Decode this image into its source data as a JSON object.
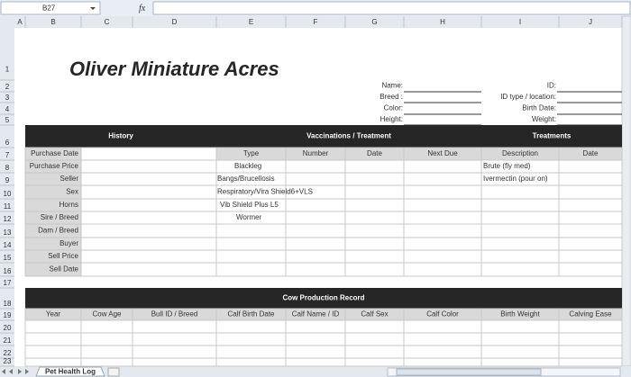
{
  "formula_bar": {
    "name_box": "B27",
    "fx": "fx"
  },
  "column_headers": [
    "A",
    "B",
    "C",
    "D",
    "E",
    "F",
    "G",
    "H",
    "I",
    "J"
  ],
  "row_headers": [
    "1",
    "2",
    "3",
    "4",
    "5",
    "6",
    "7",
    "8",
    "9",
    "10",
    "11",
    "12",
    "13",
    "14",
    "15",
    "16",
    "17",
    "18",
    "19",
    "20",
    "21",
    "22",
    "23"
  ],
  "title": "Oliver Miniature Acres",
  "fields_left": [
    "Name:",
    "Breed :",
    "Color:",
    "Height:"
  ],
  "fields_right": [
    "ID:",
    "ID type / location:",
    "Birth Date:",
    "Weight:"
  ],
  "history": {
    "title": "History",
    "labels": [
      "Purchase Date",
      "Purchase Price",
      "Seller",
      "Sex",
      "Horns",
      "Sire / Breed",
      "Dam / Breed",
      "Buyer",
      "Sell Price",
      "Sell Date"
    ]
  },
  "vaccinations": {
    "title": "Vaccinations / Treatment",
    "columns": [
      "Type",
      "Number",
      "Date",
      "Next Due"
    ],
    "items": [
      "Blackleg",
      "Bangs/Brucellosis",
      "Respiratory/Vira Shield6+VLS",
      "Vib Shield Plus L5",
      "Wormer"
    ]
  },
  "treatments": {
    "title": "Treatments",
    "columns": [
      "Description",
      "Date"
    ],
    "items": [
      "Brute (fly med)",
      "Ivermectin (pour on)"
    ]
  },
  "production": {
    "title": "Cow Production Record",
    "columns": [
      "Year",
      "Cow Age",
      "Bull ID / Breed",
      "Calf Birth Date",
      "Calf Name / ID",
      "Calf Sex",
      "Calf Color",
      "Birth Weight",
      "Calving Ease"
    ]
  },
  "sheet_tab": "Pet Health Log"
}
